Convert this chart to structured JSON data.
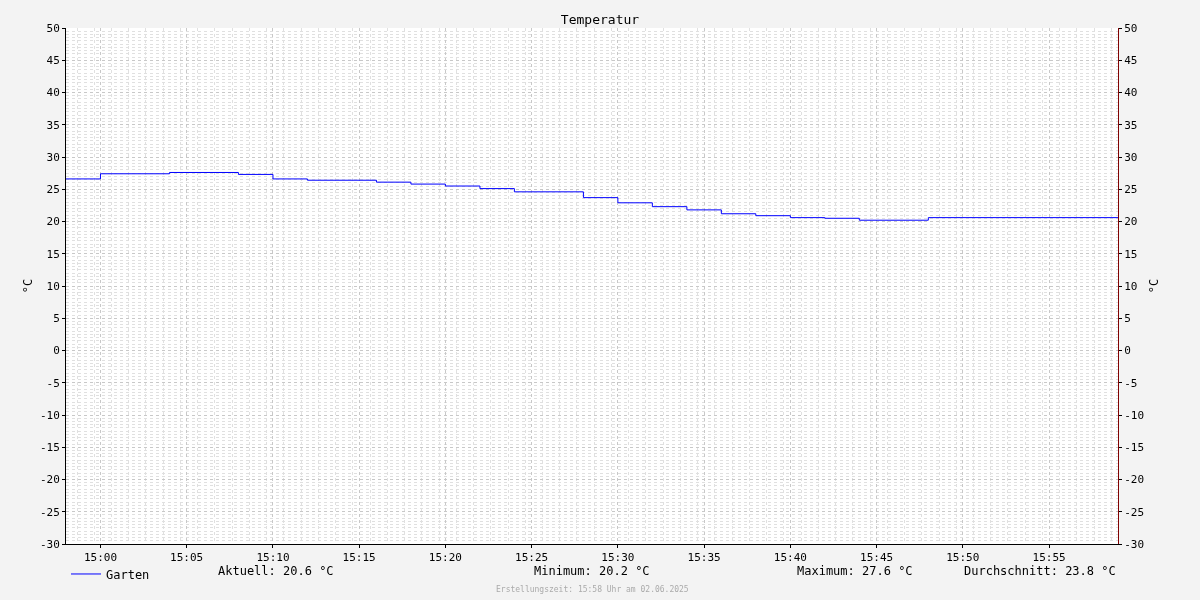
{
  "chart_data": {
    "type": "step",
    "title": "Temperatur",
    "ylabel": "°C",
    "y2label": "°C",
    "x": [
      14.9667,
      15,
      15.0667,
      15.1333,
      15.1667,
      15.2,
      15.2667,
      15.3,
      15.3333,
      15.3667,
      15.4,
      15.4667,
      15.5,
      15.5333,
      15.5667,
      15.6,
      15.6333,
      15.6667,
      15.7,
      15.7333,
      15.8,
      15.9833
    ],
    "series": [
      {
        "name": "Garten",
        "color": "#0000ff",
        "values": [
          26.6,
          27.4,
          27.6,
          27.3,
          26.6,
          26.4,
          26.1,
          25.8,
          25.5,
          25.1,
          24.6,
          23.7,
          22.9,
          22.3,
          21.8,
          21.2,
          20.9,
          20.6,
          20.5,
          20.2,
          20.6,
          20.6
        ]
      }
    ],
    "xlim": [
      14.9667,
      15.9833
    ],
    "xticks": [
      {
        "value": 15,
        "label": "15:00"
      },
      {
        "value": 15.0833,
        "label": "15:05"
      },
      {
        "value": 15.1667,
        "label": "15:10"
      },
      {
        "value": 15.25,
        "label": "15:15"
      },
      {
        "value": 15.3333,
        "label": "15:20"
      },
      {
        "value": 15.4167,
        "label": "15:25"
      },
      {
        "value": 15.5,
        "label": "15:30"
      },
      {
        "value": 15.5833,
        "label": "15:35"
      },
      {
        "value": 15.6667,
        "label": "15:40"
      },
      {
        "value": 15.75,
        "label": "15:45"
      },
      {
        "value": 15.8333,
        "label": "15:50"
      },
      {
        "value": 15.9167,
        "label": "15:55"
      }
    ],
    "ylim": [
      -30,
      50
    ],
    "yticks": [
      -30,
      -25,
      -20,
      -15,
      -10,
      -5,
      0,
      5,
      10,
      15,
      20,
      25,
      30,
      35,
      40,
      45,
      50
    ],
    "y2lim": [
      -30,
      50
    ],
    "y2ticks": [
      -30,
      -25,
      -20,
      -15,
      -10,
      -5,
      0,
      5,
      10,
      15,
      20,
      25,
      30,
      35,
      40,
      45,
      50
    ],
    "grid": true,
    "legend": "bottom left",
    "line_style": "solid",
    "marker": "none",
    "annotations": [
      "Aktuell: 20.6 °C",
      "Minimum: 20.2 °C",
      "Maximum: 27.6 °C",
      "Durchschnitt: 23.8 °C",
      "Erstellungszeit: 15:58 Uhr am 02.06.2025"
    ]
  }
}
